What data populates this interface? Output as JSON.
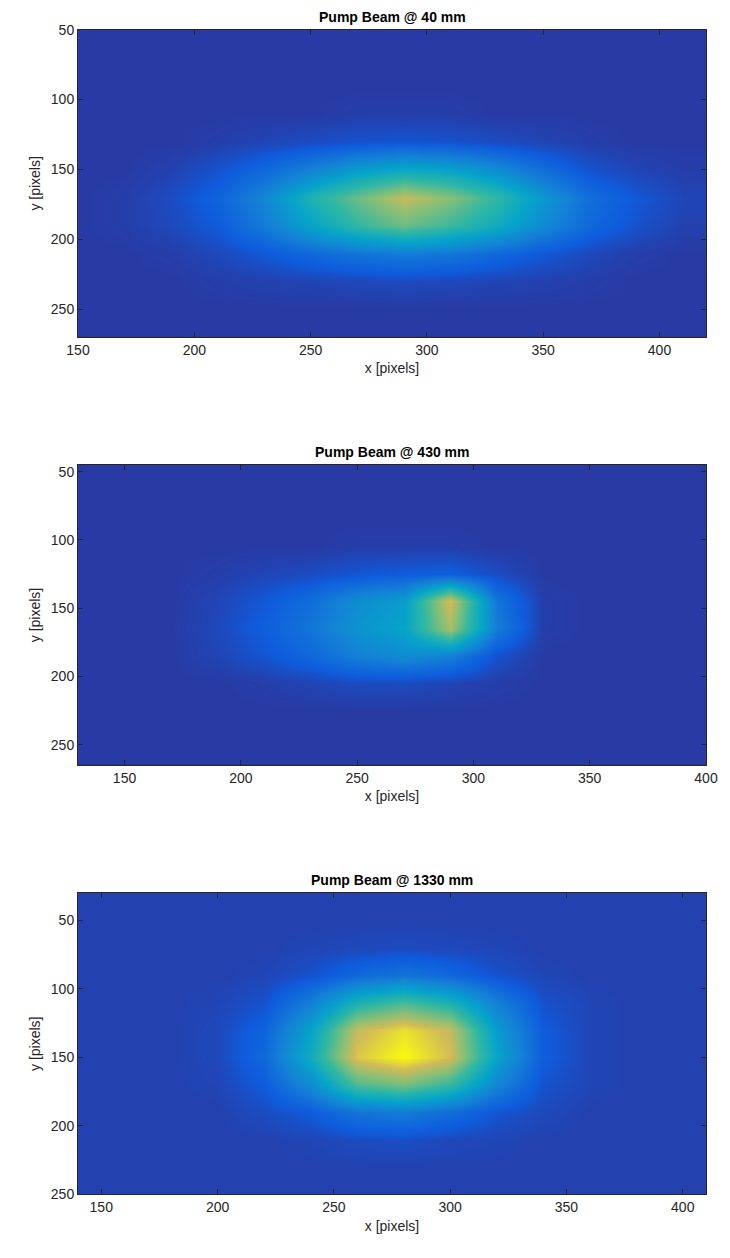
{
  "chart_data": [
    {
      "type": "heatmap",
      "title": "Pump Beam @ 40 mm",
      "x_label": "x [pixels]",
      "y_label": "y [pixels]",
      "xlim": [
        150,
        420
      ],
      "ylim": [
        270,
        50
      ],
      "xticks": [
        150,
        200,
        250,
        300,
        350,
        400
      ],
      "yticks": [
        50,
        100,
        150,
        200,
        250
      ],
      "zlim": [
        0,
        1
      ],
      "x": [
        150,
        170,
        190,
        210,
        230,
        250,
        270,
        290,
        310,
        330,
        350,
        370,
        390,
        410
      ],
      "y": [
        50,
        70,
        90,
        110,
        130,
        150,
        170,
        190,
        210,
        230,
        250,
        270
      ],
      "z": [
        [
          0.05,
          0.05,
          0.05,
          0.05,
          0.05,
          0.05,
          0.05,
          0.05,
          0.05,
          0.05,
          0.05,
          0.05,
          0.05,
          0.05
        ],
        [
          0.05,
          0.05,
          0.05,
          0.05,
          0.05,
          0.05,
          0.05,
          0.05,
          0.05,
          0.05,
          0.05,
          0.05,
          0.05,
          0.05
        ],
        [
          0.05,
          0.05,
          0.05,
          0.05,
          0.05,
          0.05,
          0.05,
          0.05,
          0.05,
          0.05,
          0.05,
          0.05,
          0.05,
          0.05
        ],
        [
          0.05,
          0.05,
          0.05,
          0.05,
          0.05,
          0.05,
          0.06,
          0.06,
          0.06,
          0.05,
          0.05,
          0.05,
          0.05,
          0.05
        ],
        [
          0.05,
          0.05,
          0.05,
          0.06,
          0.08,
          0.1,
          0.12,
          0.13,
          0.12,
          0.1,
          0.08,
          0.06,
          0.05,
          0.05
        ],
        [
          0.05,
          0.05,
          0.07,
          0.12,
          0.2,
          0.3,
          0.42,
          0.48,
          0.45,
          0.35,
          0.22,
          0.12,
          0.08,
          0.06
        ],
        [
          0.05,
          0.06,
          0.1,
          0.18,
          0.32,
          0.55,
          0.7,
          0.85,
          0.75,
          0.6,
          0.4,
          0.22,
          0.14,
          0.08
        ],
        [
          0.05,
          0.06,
          0.09,
          0.15,
          0.28,
          0.45,
          0.6,
          0.7,
          0.62,
          0.5,
          0.34,
          0.2,
          0.12,
          0.07
        ],
        [
          0.05,
          0.05,
          0.06,
          0.09,
          0.14,
          0.2,
          0.25,
          0.28,
          0.26,
          0.2,
          0.14,
          0.09,
          0.06,
          0.05
        ],
        [
          0.05,
          0.05,
          0.05,
          0.06,
          0.07,
          0.08,
          0.09,
          0.1,
          0.09,
          0.08,
          0.07,
          0.06,
          0.05,
          0.05
        ],
        [
          0.05,
          0.05,
          0.05,
          0.05,
          0.05,
          0.05,
          0.05,
          0.05,
          0.05,
          0.05,
          0.05,
          0.05,
          0.05,
          0.05
        ],
        [
          0.05,
          0.05,
          0.05,
          0.05,
          0.05,
          0.05,
          0.05,
          0.05,
          0.05,
          0.05,
          0.05,
          0.05,
          0.05,
          0.05
        ]
      ]
    },
    {
      "type": "heatmap",
      "title": "Pump Beam @ 430 mm",
      "x_label": "x [pixels]",
      "y_label": "y [pixels]",
      "xlim": [
        130,
        400
      ],
      "ylim": [
        265,
        45
      ],
      "xticks": [
        150,
        200,
        250,
        300,
        350,
        400
      ],
      "yticks": [
        50,
        100,
        150,
        200,
        250
      ],
      "zlim": [
        0,
        1
      ],
      "x": [
        130,
        150,
        170,
        190,
        210,
        230,
        250,
        270,
        290,
        310,
        330,
        350,
        370,
        390,
        410
      ],
      "y": [
        45,
        65,
        85,
        105,
        125,
        145,
        165,
        185,
        205,
        225,
        245,
        265
      ],
      "z": [
        [
          0.05,
          0.05,
          0.05,
          0.05,
          0.05,
          0.05,
          0.05,
          0.05,
          0.05,
          0.05,
          0.05,
          0.05,
          0.05,
          0.05,
          0.05
        ],
        [
          0.05,
          0.05,
          0.05,
          0.05,
          0.05,
          0.05,
          0.05,
          0.05,
          0.05,
          0.05,
          0.05,
          0.05,
          0.05,
          0.05,
          0.05
        ],
        [
          0.05,
          0.05,
          0.05,
          0.05,
          0.05,
          0.05,
          0.05,
          0.05,
          0.05,
          0.05,
          0.05,
          0.05,
          0.05,
          0.05,
          0.05
        ],
        [
          0.05,
          0.05,
          0.05,
          0.05,
          0.05,
          0.05,
          0.06,
          0.06,
          0.06,
          0.05,
          0.05,
          0.05,
          0.05,
          0.05,
          0.05
        ],
        [
          0.05,
          0.05,
          0.05,
          0.06,
          0.08,
          0.1,
          0.13,
          0.15,
          0.16,
          0.1,
          0.05,
          0.05,
          0.05,
          0.05,
          0.05
        ],
        [
          0.05,
          0.05,
          0.05,
          0.08,
          0.14,
          0.22,
          0.35,
          0.42,
          0.88,
          0.25,
          0.06,
          0.05,
          0.05,
          0.05,
          0.05
        ],
        [
          0.05,
          0.05,
          0.05,
          0.09,
          0.16,
          0.25,
          0.38,
          0.45,
          0.8,
          0.28,
          0.06,
          0.05,
          0.05,
          0.05,
          0.05
        ],
        [
          0.05,
          0.05,
          0.05,
          0.08,
          0.13,
          0.2,
          0.3,
          0.35,
          0.3,
          0.12,
          0.05,
          0.05,
          0.05,
          0.05,
          0.05
        ],
        [
          0.05,
          0.05,
          0.05,
          0.05,
          0.06,
          0.08,
          0.1,
          0.1,
          0.08,
          0.06,
          0.05,
          0.05,
          0.05,
          0.05,
          0.05
        ],
        [
          0.05,
          0.05,
          0.05,
          0.05,
          0.05,
          0.05,
          0.05,
          0.05,
          0.05,
          0.05,
          0.05,
          0.05,
          0.05,
          0.05,
          0.05
        ],
        [
          0.05,
          0.05,
          0.05,
          0.05,
          0.05,
          0.05,
          0.05,
          0.05,
          0.05,
          0.05,
          0.05,
          0.05,
          0.05,
          0.05,
          0.05
        ],
        [
          0.05,
          0.05,
          0.05,
          0.05,
          0.05,
          0.05,
          0.05,
          0.05,
          0.05,
          0.05,
          0.05,
          0.05,
          0.05,
          0.05,
          0.05
        ]
      ]
    },
    {
      "type": "heatmap",
      "title": "Pump Beam @ 1330 mm",
      "x_label": "x [pixels]",
      "y_label": "y [pixels]",
      "xlim": [
        140,
        410
      ],
      "ylim": [
        250,
        30
      ],
      "xticks": [
        150,
        200,
        250,
        300,
        350,
        400
      ],
      "yticks": [
        50,
        100,
        150,
        200,
        250
      ],
      "zlim": [
        0,
        1
      ],
      "x": [
        140,
        160,
        180,
        200,
        220,
        240,
        260,
        280,
        300,
        320,
        340,
        360,
        380,
        400,
        420
      ],
      "y": [
        30,
        50,
        70,
        90,
        110,
        130,
        150,
        170,
        190,
        210,
        230,
        250
      ],
      "z": [
        [
          0.07,
          0.07,
          0.07,
          0.07,
          0.07,
          0.07,
          0.07,
          0.07,
          0.07,
          0.07,
          0.07,
          0.07,
          0.07,
          0.07,
          0.07
        ],
        [
          0.07,
          0.07,
          0.07,
          0.07,
          0.07,
          0.07,
          0.07,
          0.07,
          0.07,
          0.07,
          0.07,
          0.07,
          0.07,
          0.07,
          0.07
        ],
        [
          0.07,
          0.07,
          0.07,
          0.07,
          0.07,
          0.08,
          0.09,
          0.1,
          0.09,
          0.08,
          0.07,
          0.07,
          0.07,
          0.07,
          0.07
        ],
        [
          0.07,
          0.07,
          0.07,
          0.07,
          0.08,
          0.12,
          0.2,
          0.25,
          0.2,
          0.12,
          0.08,
          0.07,
          0.07,
          0.07,
          0.07
        ],
        [
          0.07,
          0.07,
          0.07,
          0.08,
          0.12,
          0.3,
          0.55,
          0.65,
          0.55,
          0.3,
          0.12,
          0.08,
          0.07,
          0.07,
          0.07
        ],
        [
          0.07,
          0.07,
          0.07,
          0.09,
          0.18,
          0.45,
          0.85,
          0.95,
          0.85,
          0.42,
          0.15,
          0.08,
          0.07,
          0.07,
          0.07
        ],
        [
          0.07,
          0.07,
          0.07,
          0.09,
          0.2,
          0.5,
          0.9,
          1.0,
          0.88,
          0.45,
          0.16,
          0.08,
          0.07,
          0.07,
          0.07
        ],
        [
          0.07,
          0.07,
          0.07,
          0.08,
          0.15,
          0.35,
          0.65,
          0.72,
          0.6,
          0.32,
          0.12,
          0.08,
          0.07,
          0.07,
          0.07
        ],
        [
          0.07,
          0.07,
          0.07,
          0.07,
          0.1,
          0.15,
          0.25,
          0.28,
          0.22,
          0.13,
          0.09,
          0.07,
          0.07,
          0.07,
          0.07
        ],
        [
          0.07,
          0.07,
          0.07,
          0.07,
          0.07,
          0.08,
          0.1,
          0.11,
          0.09,
          0.08,
          0.07,
          0.07,
          0.07,
          0.07,
          0.07
        ],
        [
          0.07,
          0.07,
          0.07,
          0.07,
          0.07,
          0.07,
          0.07,
          0.07,
          0.07,
          0.07,
          0.07,
          0.07,
          0.07,
          0.07,
          0.07
        ],
        [
          0.07,
          0.07,
          0.07,
          0.07,
          0.07,
          0.07,
          0.07,
          0.07,
          0.07,
          0.07,
          0.07,
          0.07,
          0.07,
          0.07,
          0.07
        ]
      ]
    }
  ]
}
